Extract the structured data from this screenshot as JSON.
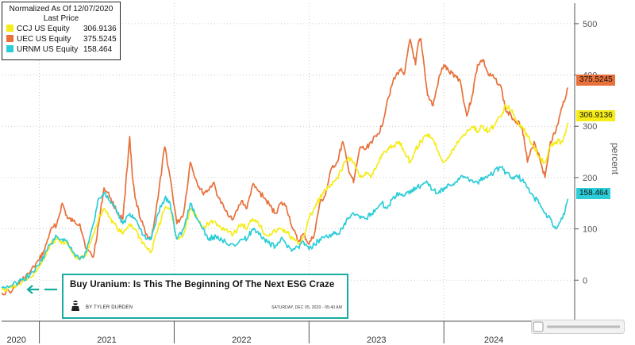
{
  "chart_data": {
    "type": "line",
    "legend_title": "Normalized As Of 12/07/2020",
    "legend_subtitle": "Last Price",
    "ylabel": "percent",
    "ylim": [
      -80,
      540
    ],
    "yticks": [
      0,
      100,
      200,
      300,
      400,
      500
    ],
    "x_labels": [
      {
        "label": "2020",
        "t": 2020.83
      },
      {
        "label": "2021",
        "t": 2021.5
      },
      {
        "label": "2022",
        "t": 2022.5
      },
      {
        "label": "2023",
        "t": 2023.5
      },
      {
        "label": "2024",
        "t": 2024.37
      }
    ],
    "year_boundaries": [
      2021.0,
      2022.0,
      2023.0,
      2024.0
    ],
    "xlim": [
      2020.72,
      2024.97
    ],
    "legend_placement": "top-left",
    "grid": true,
    "series": [
      {
        "name": "UEC US Equity",
        "last_value": "375.5245",
        "color": "#e8703a",
        "t": [
          2020.72,
          2020.8,
          2020.87,
          2020.93,
          2021.0,
          2021.04,
          2021.08,
          2021.13,
          2021.17,
          2021.21,
          2021.25,
          2021.3,
          2021.35,
          2021.4,
          2021.44,
          2021.48,
          2021.53,
          2021.58,
          2021.62,
          2021.67,
          2021.69,
          2021.71,
          2021.75,
          2021.79,
          2021.83,
          2021.88,
          2021.93,
          2021.97,
          2022.02,
          2022.07,
          2022.12,
          2022.17,
          2022.21,
          2022.25,
          2022.29,
          2022.33,
          2022.38,
          2022.44,
          2022.5,
          2022.54,
          2022.58,
          2022.62,
          2022.67,
          2022.71,
          2022.75,
          2022.79,
          2022.83,
          2022.88,
          2022.92,
          2022.96,
          2023.0,
          2023.04,
          2023.08,
          2023.12,
          2023.17,
          2023.21,
          2023.25,
          2023.29,
          2023.33,
          2023.38,
          2023.42,
          2023.46,
          2023.5,
          2023.54,
          2023.58,
          2023.62,
          2023.67,
          2023.71,
          2023.75,
          2023.79,
          2023.81,
          2023.83,
          2023.88,
          2023.92,
          2023.96,
          2024.0,
          2024.04,
          2024.08,
          2024.12,
          2024.17,
          2024.21,
          2024.25,
          2024.29,
          2024.33,
          2024.37,
          2024.42,
          2024.46,
          2024.5,
          2024.54,
          2024.58,
          2024.62,
          2024.67,
          2024.71,
          2024.75,
          2024.79,
          2024.83,
          2024.88,
          2024.92
        ],
        "v": [
          -25,
          -20,
          0,
          15,
          40,
          60,
          95,
          110,
          150,
          120,
          115,
          110,
          60,
          45,
          110,
          180,
          160,
          130,
          120,
          280,
          200,
          160,
          120,
          90,
          80,
          160,
          260,
          200,
          110,
          130,
          230,
          190,
          170,
          175,
          190,
          160,
          135,
          120,
          155,
          140,
          185,
          175,
          160,
          145,
          130,
          150,
          145,
          100,
          75,
          90,
          70,
          90,
          150,
          165,
          220,
          230,
          270,
          220,
          190,
          260,
          255,
          270,
          280,
          300,
          350,
          385,
          410,
          405,
          470,
          420,
          460,
          470,
          360,
          340,
          390,
          420,
          405,
          400,
          390,
          320,
          360,
          420,
          430,
          400,
          395,
          380,
          330,
          320,
          310,
          300,
          230,
          270,
          240,
          200,
          270,
          290,
          340,
          375.5
        ]
      },
      {
        "name": "CCJ US Equity",
        "last_value": "306.9136",
        "color": "#f5ec18",
        "t": [
          2020.72,
          2020.8,
          2020.87,
          2020.93,
          2021.0,
          2021.04,
          2021.08,
          2021.13,
          2021.17,
          2021.21,
          2021.25,
          2021.3,
          2021.35,
          2021.4,
          2021.44,
          2021.48,
          2021.53,
          2021.58,
          2021.62,
          2021.67,
          2021.71,
          2021.75,
          2021.79,
          2021.83,
          2021.88,
          2021.93,
          2021.97,
          2022.02,
          2022.07,
          2022.12,
          2022.17,
          2022.21,
          2022.25,
          2022.29,
          2022.33,
          2022.38,
          2022.44,
          2022.5,
          2022.54,
          2022.58,
          2022.62,
          2022.67,
          2022.71,
          2022.75,
          2022.79,
          2022.83,
          2022.88,
          2022.92,
          2022.96,
          2023.0,
          2023.04,
          2023.08,
          2023.12,
          2023.17,
          2023.21,
          2023.25,
          2023.29,
          2023.33,
          2023.38,
          2023.42,
          2023.46,
          2023.5,
          2023.54,
          2023.58,
          2023.62,
          2023.67,
          2023.71,
          2023.75,
          2023.79,
          2023.83,
          2023.88,
          2023.92,
          2023.96,
          2024.0,
          2024.04,
          2024.08,
          2024.12,
          2024.17,
          2024.21,
          2024.25,
          2024.29,
          2024.33,
          2024.37,
          2024.42,
          2024.46,
          2024.5,
          2024.54,
          2024.58,
          2024.62,
          2024.67,
          2024.71,
          2024.75,
          2024.79,
          2024.83,
          2024.88,
          2024.92
        ],
        "v": [
          -20,
          -15,
          -5,
          5,
          25,
          45,
          70,
          80,
          75,
          70,
          50,
          40,
          50,
          90,
          120,
          140,
          120,
          100,
          90,
          110,
          100,
          80,
          65,
          55,
          100,
          140,
          140,
          80,
          90,
          140,
          120,
          100,
          110,
          115,
          105,
          100,
          90,
          110,
          100,
          120,
          115,
          90,
          90,
          95,
          100,
          95,
          80,
          70,
          85,
          120,
          140,
          160,
          175,
          185,
          200,
          220,
          240,
          230,
          200,
          210,
          200,
          220,
          245,
          255,
          260,
          270,
          250,
          230,
          255,
          270,
          285,
          275,
          250,
          230,
          240,
          260,
          275,
          290,
          300,
          290,
          300,
          290,
          300,
          320,
          340,
          330,
          310,
          300,
          280,
          260,
          240,
          230,
          260,
          270,
          270,
          306.9
        ]
      },
      {
        "name": "URNM US Equity",
        "last_value": "158.464",
        "color": "#2ccdd8",
        "t": [
          2020.72,
          2020.8,
          2020.87,
          2020.93,
          2021.0,
          2021.04,
          2021.08,
          2021.13,
          2021.17,
          2021.21,
          2021.25,
          2021.3,
          2021.35,
          2021.4,
          2021.44,
          2021.48,
          2021.53,
          2021.58,
          2021.62,
          2021.67,
          2021.71,
          2021.75,
          2021.79,
          2021.83,
          2021.88,
          2021.93,
          2021.97,
          2022.02,
          2022.07,
          2022.12,
          2022.17,
          2022.21,
          2022.25,
          2022.29,
          2022.33,
          2022.38,
          2022.44,
          2022.5,
          2022.54,
          2022.58,
          2022.62,
          2022.67,
          2022.71,
          2022.75,
          2022.79,
          2022.83,
          2022.88,
          2022.92,
          2022.96,
          2023.0,
          2023.04,
          2023.08,
          2023.12,
          2023.17,
          2023.21,
          2023.25,
          2023.29,
          2023.33,
          2023.38,
          2023.42,
          2023.46,
          2023.5,
          2023.54,
          2023.58,
          2023.62,
          2023.67,
          2023.71,
          2023.75,
          2023.79,
          2023.83,
          2023.88,
          2023.92,
          2023.96,
          2024.0,
          2024.04,
          2024.08,
          2024.12,
          2024.17,
          2024.21,
          2024.25,
          2024.29,
          2024.33,
          2024.37,
          2024.42,
          2024.46,
          2024.5,
          2024.54,
          2024.58,
          2024.62,
          2024.67,
          2024.71,
          2024.75,
          2024.79,
          2024.83,
          2024.88,
          2024.92
        ],
        "v": [
          -15,
          -10,
          0,
          10,
          30,
          50,
          70,
          85,
          80,
          75,
          55,
          40,
          55,
          110,
          160,
          170,
          150,
          130,
          110,
          130,
          120,
          100,
          80,
          80,
          130,
          160,
          150,
          80,
          100,
          150,
          120,
          100,
          80,
          85,
          80,
          75,
          70,
          80,
          80,
          100,
          95,
          80,
          70,
          65,
          80,
          70,
          60,
          65,
          75,
          60,
          70,
          80,
          85,
          90,
          90,
          100,
          120,
          130,
          120,
          120,
          130,
          140,
          150,
          140,
          160,
          170,
          165,
          175,
          180,
          185,
          190,
          175,
          170,
          180,
          185,
          190,
          200,
          200,
          195,
          190,
          200,
          205,
          210,
          220,
          210,
          200,
          205,
          195,
          180,
          160,
          150,
          130,
          120,
          100,
          120,
          158.5
        ]
      }
    ]
  },
  "news": {
    "title": "Buy Uranium: Is This The Beginning Of The Next ESG Craze",
    "author": "BY TYLER DURDEN",
    "date": "SATURDAY, DEC 05, 2020 - 05:40 AM"
  }
}
